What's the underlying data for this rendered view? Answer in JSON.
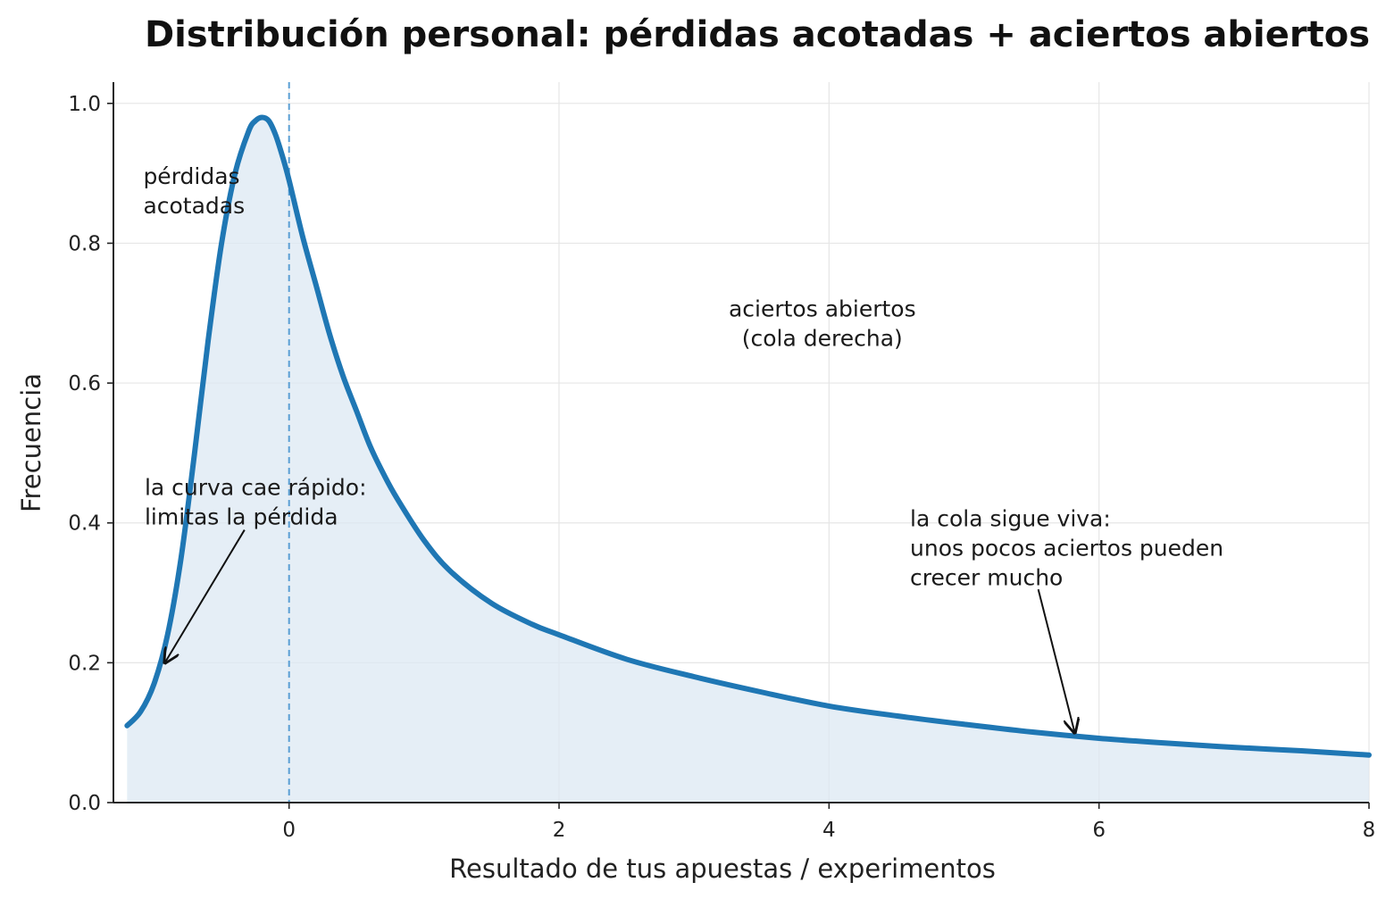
{
  "chart_data": {
    "type": "area",
    "title": "Distribución personal: pérdidas acotadas + aciertos abiertos",
    "xlabel": "Resultado de tus apuestas / experimentos",
    "ylabel": "Frecuencia",
    "xlim": [
      -1.2,
      8
    ],
    "ylim": [
      0,
      1.03
    ],
    "x_ticks": [
      0,
      2,
      4,
      6,
      8
    ],
    "y_ticks": [
      0.0,
      0.2,
      0.4,
      0.6,
      0.8,
      1.0
    ],
    "x_tick_labels": [
      "0",
      "2",
      "4",
      "6",
      "8"
    ],
    "y_tick_labels": [
      "0.0",
      "0.2",
      "0.4",
      "0.6",
      "0.8",
      "1.0"
    ],
    "grid": true,
    "colors": {
      "line": "#1f77b4",
      "fill": "#dce8f3",
      "vline": "#5a9fd4"
    },
    "reference_line": {
      "x": 0,
      "style": "dashed"
    },
    "series": [
      {
        "x": [
          -1.2,
          -1.1,
          -1.0,
          -0.9,
          -0.8,
          -0.7,
          -0.6,
          -0.5,
          -0.4,
          -0.3,
          -0.25,
          -0.2,
          -0.15,
          -0.1,
          -0.05,
          0.0,
          0.1,
          0.2,
          0.3,
          0.4,
          0.5,
          0.6,
          0.7,
          0.8,
          1.0,
          1.2,
          1.5,
          1.8,
          2.0,
          2.5,
          3.0,
          3.5,
          4.0,
          4.5,
          5.0,
          5.5,
          6.0,
          6.5,
          7.0,
          7.5,
          8.0
        ],
        "values": [
          0.11,
          0.13,
          0.17,
          0.24,
          0.35,
          0.5,
          0.66,
          0.8,
          0.9,
          0.96,
          0.975,
          0.98,
          0.975,
          0.955,
          0.925,
          0.89,
          0.81,
          0.74,
          0.67,
          0.61,
          0.56,
          0.51,
          0.47,
          0.435,
          0.375,
          0.33,
          0.285,
          0.255,
          0.24,
          0.205,
          0.18,
          0.158,
          0.138,
          0.124,
          0.112,
          0.101,
          0.092,
          0.085,
          0.079,
          0.074,
          0.068
        ]
      }
    ],
    "annotations": [
      {
        "lines": [
          "pérdidas",
          "acotadas"
        ],
        "x": -1.08,
        "y": 0.885
      },
      {
        "lines": [
          "aciertos abiertos",
          "(cola derecha)"
        ],
        "x": 3.95,
        "y": 0.695,
        "align": "center"
      },
      {
        "lines": [
          "la curva cae rápido:",
          "limitas la pérdida"
        ],
        "x": -1.07,
        "y": 0.44,
        "arrow_from": [
          -0.33,
          0.39
        ],
        "arrow_to": [
          -0.92,
          0.2
        ]
      },
      {
        "lines": [
          "la cola sigue viva:",
          "unos pocos aciertos pueden",
          "crecer mucho"
        ],
        "x": 4.6,
        "y": 0.395,
        "arrow_from": [
          5.55,
          0.305
        ],
        "arrow_to": [
          5.82,
          0.1
        ]
      }
    ]
  }
}
